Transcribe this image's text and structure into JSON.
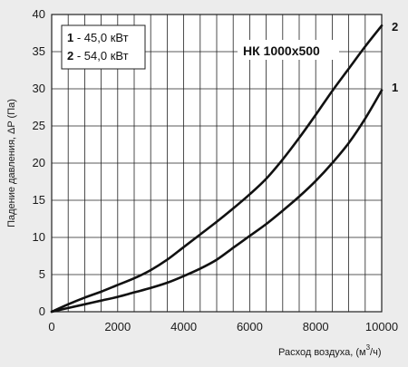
{
  "chart_data": {
    "type": "line",
    "title": "НК 1000х500",
    "xlabel_main": "Расход воздуха, (м",
    "xlabel_sup": "3",
    "xlabel_tail": "/ч)",
    "ylabel": "Падение давления, ΔP (Па)",
    "xlim": [
      0,
      10000
    ],
    "ylim": [
      0,
      40
    ],
    "x_ticks": [
      "0",
      "2000",
      "4000",
      "6000",
      "8000",
      "10000"
    ],
    "y_ticks": [
      "0",
      "5",
      "10",
      "15",
      "20",
      "25",
      "30",
      "35",
      "40"
    ],
    "grid": true,
    "legend": {
      "placement": "top-left",
      "entries": [
        {
          "num": "1",
          "text": " - 45,0  кВт"
        },
        {
          "num": "2",
          "text": " - 54,0  кВт"
        }
      ]
    },
    "series": [
      {
        "name": "1",
        "x": [
          0,
          500,
          1000,
          1500,
          2000,
          2500,
          3000,
          3500,
          4000,
          4500,
          5000,
          5500,
          6000,
          6500,
          7000,
          7500,
          8000,
          8500,
          9000,
          9500,
          10000
        ],
        "y": [
          0,
          0.5,
          1.0,
          1.5,
          2.0,
          2.6,
          3.2,
          3.9,
          4.8,
          5.8,
          7.0,
          8.6,
          10.2,
          11.8,
          13.6,
          15.5,
          17.6,
          20.0,
          22.7,
          26.0,
          29.8
        ]
      },
      {
        "name": "2",
        "x": [
          0,
          500,
          1000,
          1500,
          2000,
          2500,
          3000,
          3500,
          4000,
          4500,
          5000,
          5500,
          6000,
          6500,
          7000,
          7500,
          8000,
          8500,
          9000,
          9500,
          10000
        ],
        "y": [
          0,
          1.0,
          1.9,
          2.7,
          3.6,
          4.5,
          5.6,
          7.0,
          8.7,
          10.4,
          12.1,
          13.9,
          15.8,
          17.9,
          20.5,
          23.4,
          26.5,
          29.7,
          32.7,
          35.7,
          38.5
        ]
      }
    ]
  },
  "colors": {
    "background": "#ececec",
    "plot_area": "#ffffff",
    "grid": "#222222",
    "curve": "#111111"
  }
}
